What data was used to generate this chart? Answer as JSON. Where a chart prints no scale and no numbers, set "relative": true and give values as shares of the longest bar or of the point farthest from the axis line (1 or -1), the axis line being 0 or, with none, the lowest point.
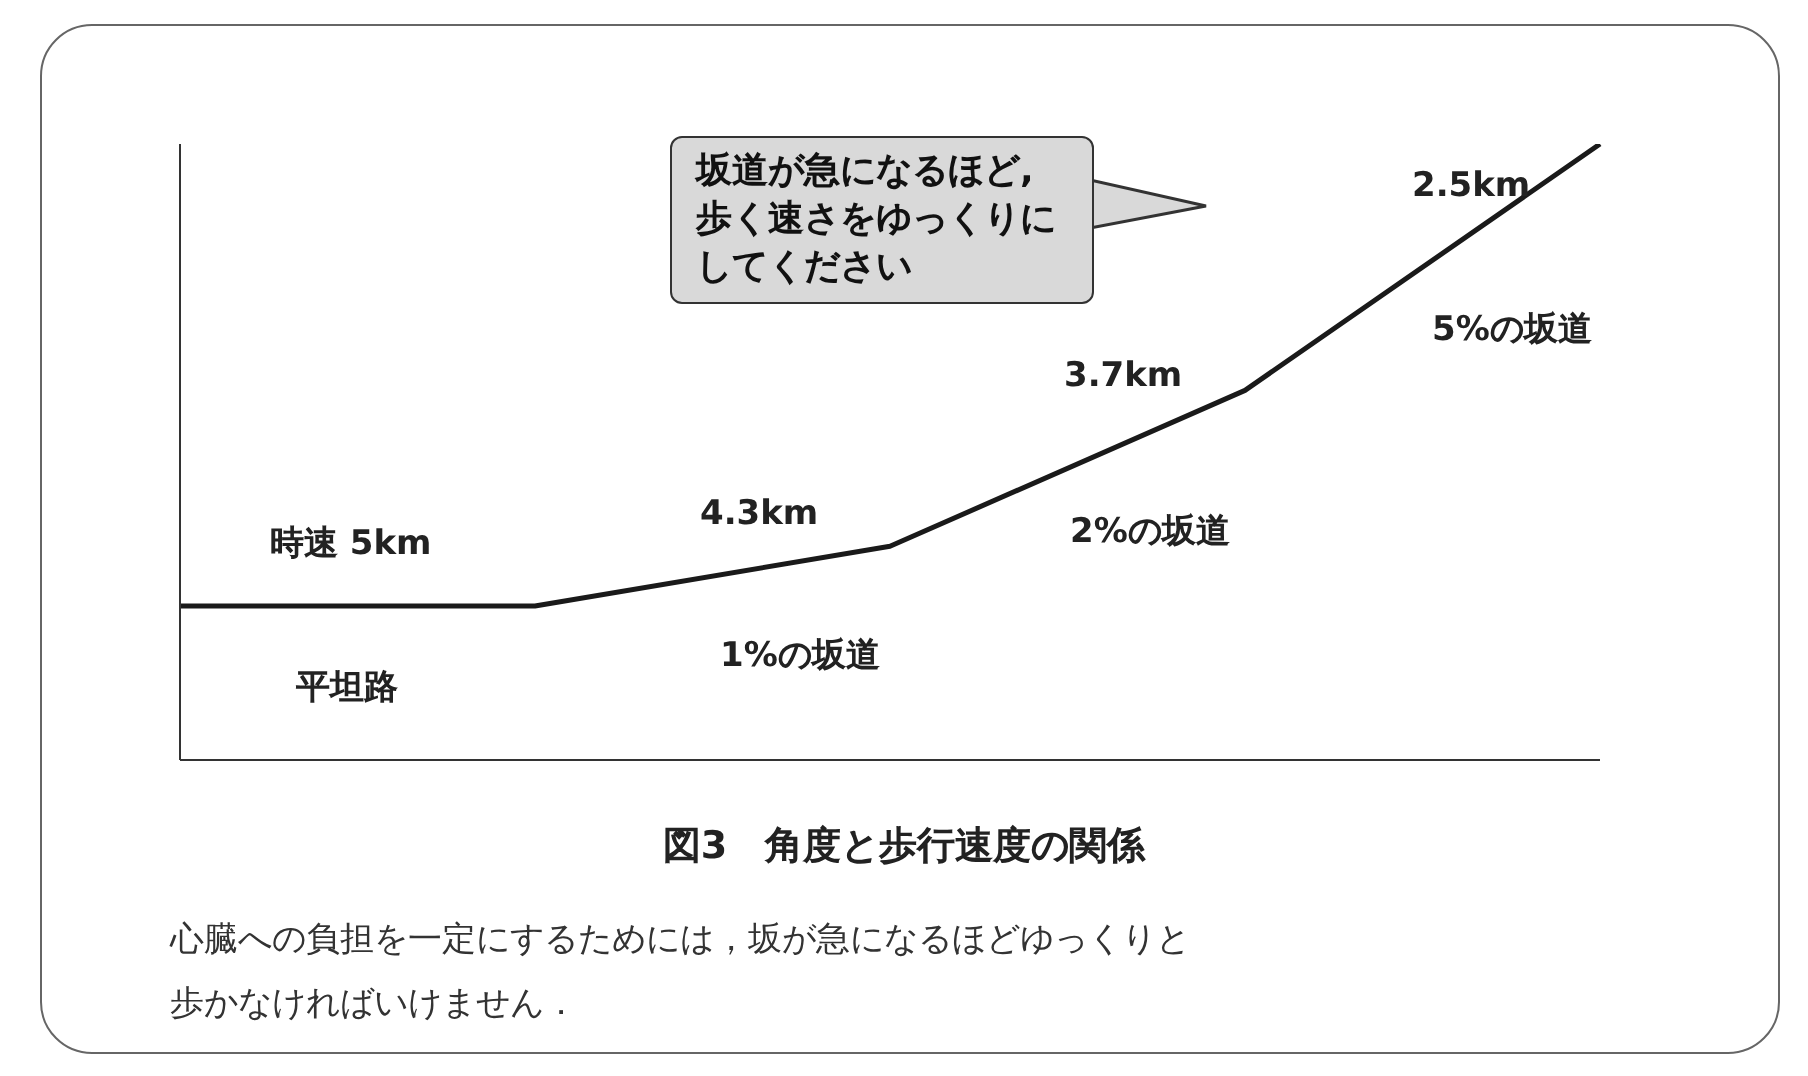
{
  "chart_data": {
    "type": "line",
    "title": "図3　角度と歩行速度の関係",
    "categories": [
      null,
      null,
      null,
      null,
      null
    ],
    "values": [
      0.25,
      0.25,
      0.347,
      0.6,
      1
    ],
    "color": "#1a1a1a",
    "relative": true,
    "marker": "none",
    "line_style": "solid",
    "annotations": [
      "時速 5km",
      "平坦路",
      "4.3km",
      "1%の坂道",
      "3.7km",
      "2%の坂道",
      "2.5km",
      "5%の坂道",
      "坂道が急になるほど,歩く速さをゆっくりにしてください",
      "心臓への負担を一定にするためには，坂が急になるほどゆっくりと歩かなければいけません．"
    ]
  }
}
